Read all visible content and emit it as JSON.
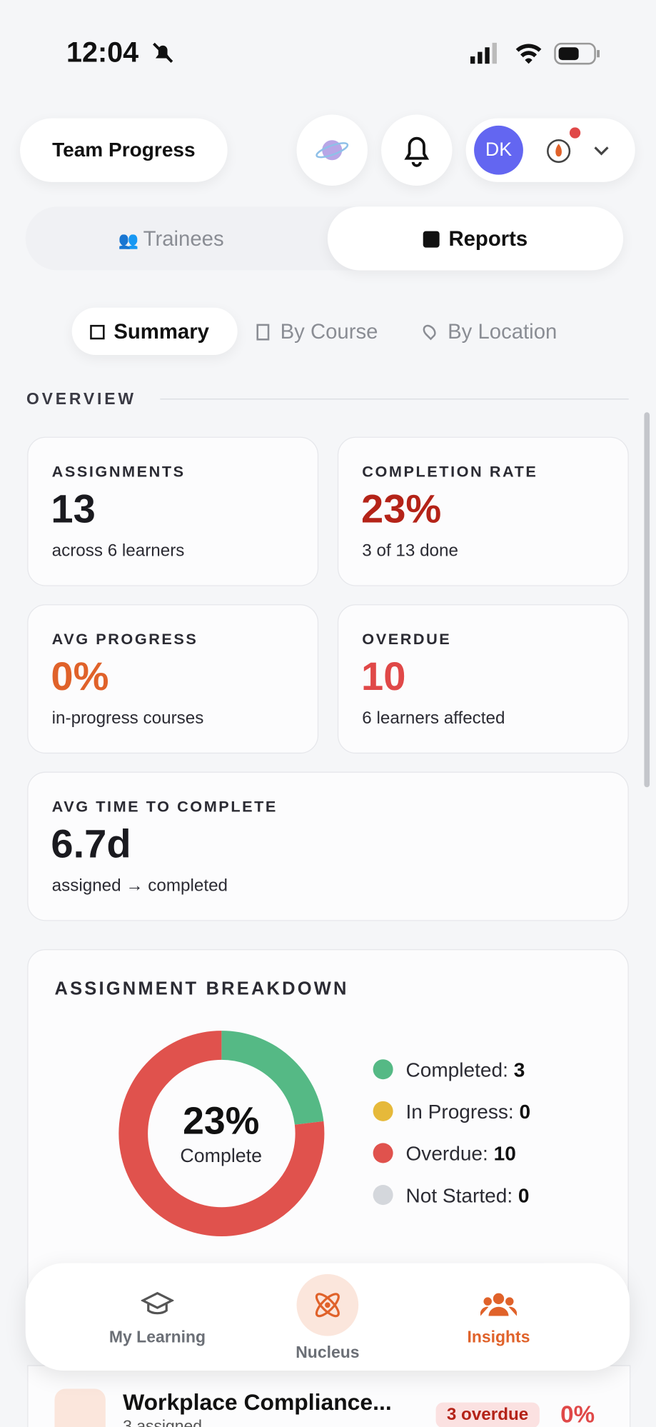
{
  "status_bar": {
    "time": "12:04"
  },
  "header": {
    "title": "Team Progress",
    "avatar": "DK"
  },
  "tabs": [
    "Trainees",
    "Reports"
  ],
  "subtabs": [
    "Summary",
    "By Course",
    "By Location"
  ],
  "overview": {
    "heading": "OVERVIEW",
    "cards": [
      {
        "label": "ASSIGNMENTS",
        "value": "13",
        "sub": "across 6 learners"
      },
      {
        "label": "COMPLETION RATE",
        "value": "23%",
        "sub": "3 of 13 done"
      },
      {
        "label": "AVG PROGRESS",
        "value": "0%",
        "sub": "in-progress courses"
      },
      {
        "label": "OVERDUE",
        "value": "10",
        "sub": "6 learners affected"
      },
      {
        "label": "AVG TIME TO COMPLETE",
        "value": "6.7d",
        "sub": "assigned → completed"
      }
    ]
  },
  "breakdown": {
    "title": "ASSIGNMENT BREAKDOWN",
    "center_value": "23%",
    "center_label": "Complete",
    "legend": [
      {
        "label": "Completed:",
        "value": 3,
        "color": "#55b985"
      },
      {
        "label": "In Progress:",
        "value": 0,
        "color": "#e6b93a"
      },
      {
        "label": "Overdue:",
        "value": 10,
        "color": "#e0524d"
      },
      {
        "label": "Not Started:",
        "value": 0,
        "color": "#d4d7dc"
      }
    ]
  },
  "nav": [
    "My Learning",
    "Nucleus",
    "Insights"
  ],
  "course_row": {
    "title": "Workplace Compliance...",
    "sub": "3 assigned",
    "badge": "3 overdue",
    "percent": "0%"
  }
}
